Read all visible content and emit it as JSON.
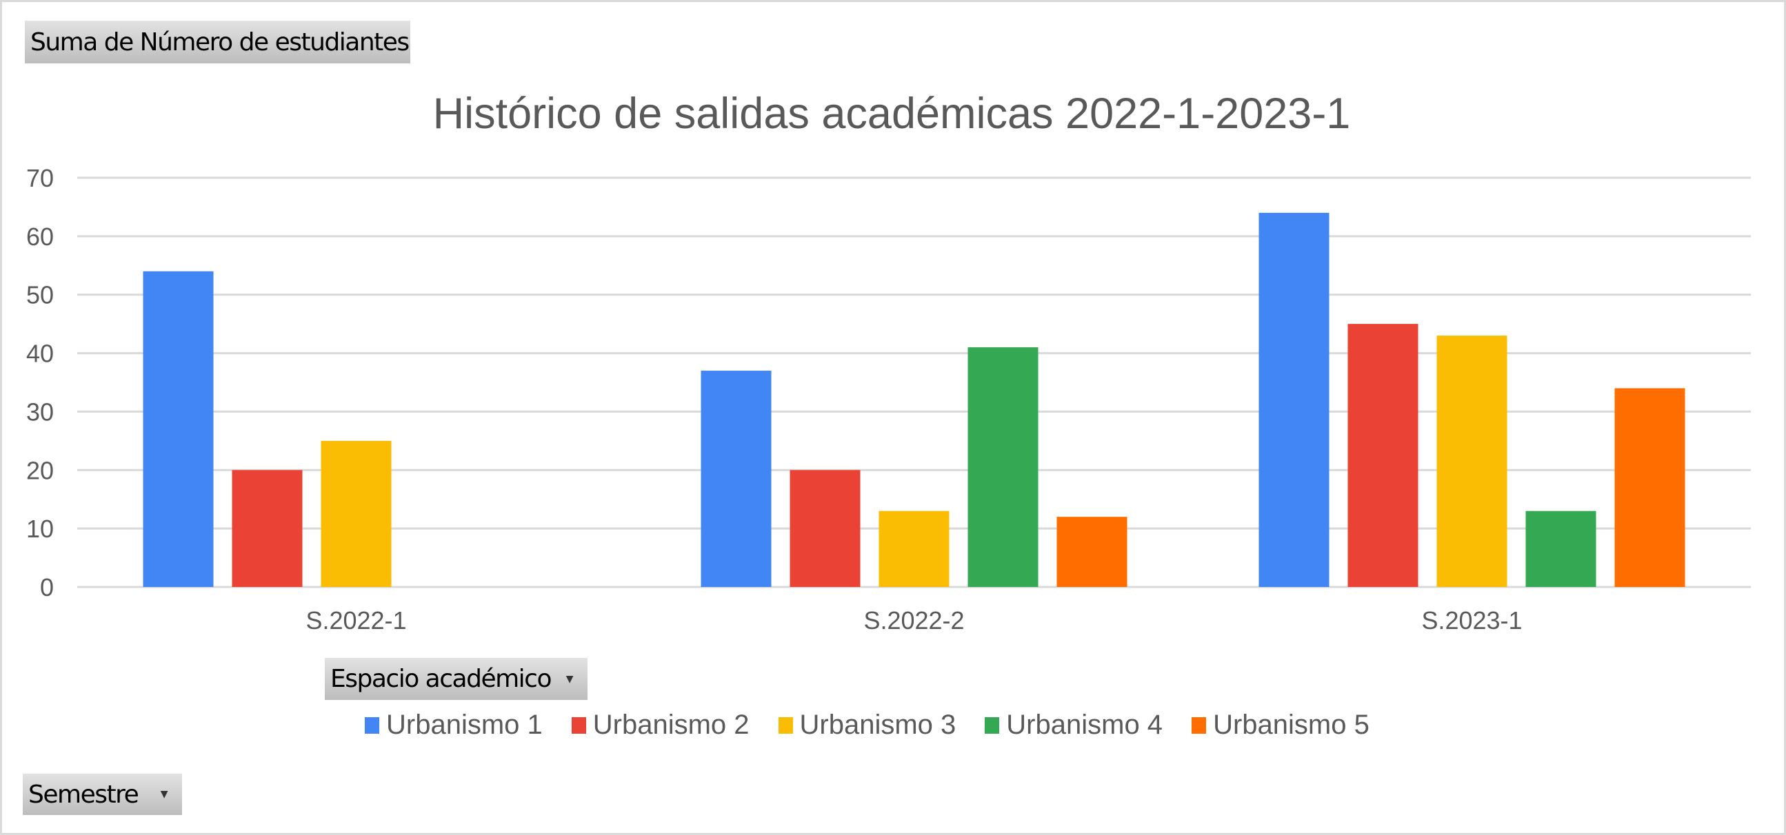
{
  "pivot_fields": {
    "values_field": "Suma de Número de estudiantes",
    "legend_field": "Espacio académico",
    "axis_field": "Semestre"
  },
  "chart_data": {
    "type": "bar",
    "title": "Histórico de salidas académicas 2022-1-2023-1",
    "xlabel": "",
    "ylabel": "",
    "ylim": [
      0,
      70
    ],
    "yticks": [
      0,
      10,
      20,
      30,
      40,
      50,
      60,
      70
    ],
    "grid": true,
    "legend_position": "bottom",
    "categories": [
      "S.2022-1",
      "S.2022-2",
      "S.2023-1"
    ],
    "series": [
      {
        "name": "Urbanismo 1",
        "color": "#4285f4",
        "values": [
          54,
          37,
          64
        ]
      },
      {
        "name": "Urbanismo 2",
        "color": "#ea4335",
        "values": [
          20,
          20,
          45
        ]
      },
      {
        "name": "Urbanismo 3",
        "color": "#fbbc04",
        "values": [
          25,
          13,
          43
        ]
      },
      {
        "name": "Urbanismo 4",
        "color": "#34a853",
        "values": [
          null,
          41,
          13
        ]
      },
      {
        "name": "Urbanismo 5",
        "color": "#ff6d01",
        "values": [
          null,
          12,
          34
        ]
      }
    ]
  }
}
